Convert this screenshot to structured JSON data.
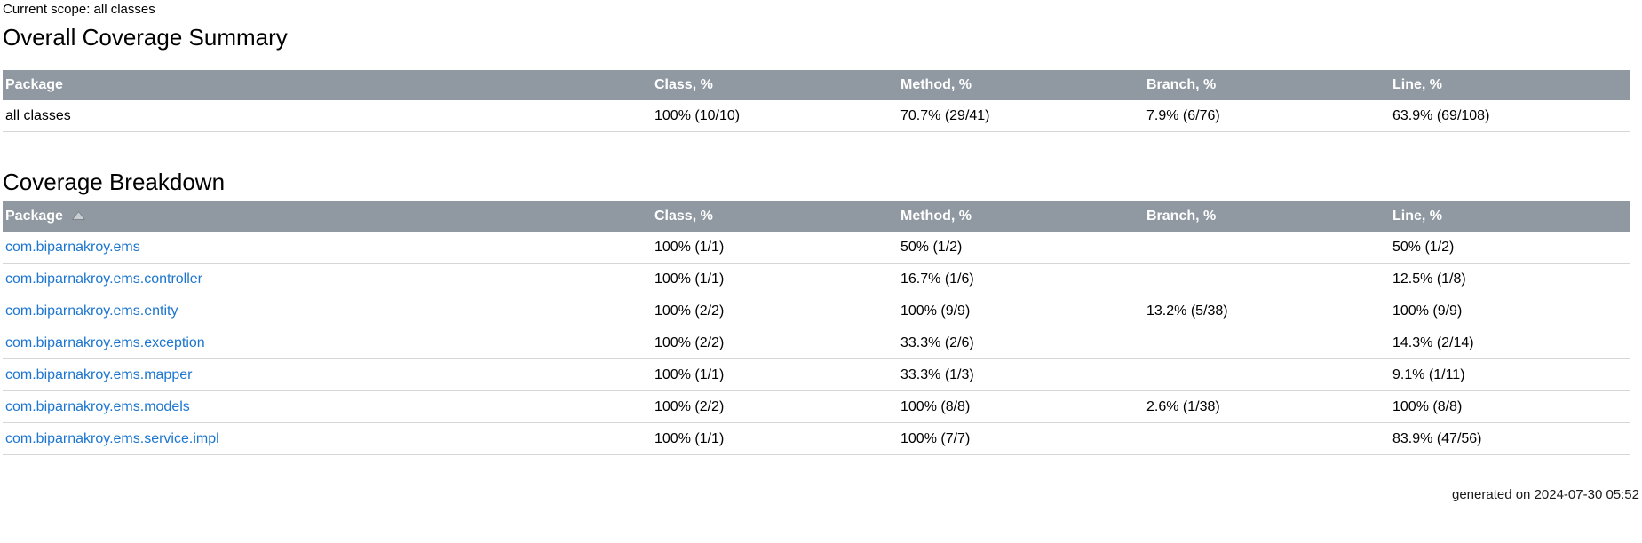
{
  "page": {
    "scope_label": "Current scope: all classes",
    "generated_label": "generated on 2024-07-30 05:52"
  },
  "colors": {
    "table_header_bg": "#9099A2",
    "table_header_text": "#FFFFFF",
    "link_blue": "#1C76CF",
    "row_border": "#D6D6D6"
  },
  "summary": {
    "title": "Overall Coverage Summary",
    "columns": [
      "Package",
      "Class, %",
      "Method, %",
      "Branch, %",
      "Line, %"
    ],
    "rows": [
      [
        "all classes",
        "100% (10/10)",
        "70.7% (29/41)",
        "7.9% (6/76)",
        "63.9% (69/108)"
      ]
    ]
  },
  "breakdown": {
    "title": "Coverage Breakdown",
    "columns": [
      "Package",
      "Class, %",
      "Method, %",
      "Branch, %",
      "Line, %"
    ],
    "sort": {
      "column": "Package",
      "direction": "ascending",
      "icon": "sort-ascending-icon"
    },
    "rows": [
      [
        "com.biparnakroy.ems",
        "100% (1/1)",
        "50% (1/2)",
        "",
        "50% (1/2)"
      ],
      [
        "com.biparnakroy.ems.controller",
        "100% (1/1)",
        "16.7% (1/6)",
        "",
        "12.5% (1/8)"
      ],
      [
        "com.biparnakroy.ems.entity",
        "100% (2/2)",
        "100% (9/9)",
        "13.2% (5/38)",
        "100% (9/9)"
      ],
      [
        "com.biparnakroy.ems.exception",
        "100% (2/2)",
        "33.3% (2/6)",
        "",
        "14.3% (2/14)"
      ],
      [
        "com.biparnakroy.ems.mapper",
        "100% (1/1)",
        "33.3% (1/3)",
        "",
        "9.1% (1/11)"
      ],
      [
        "com.biparnakroy.ems.models",
        "100% (2/2)",
        "100% (8/8)",
        "2.6% (1/38)",
        "100% (8/8)"
      ],
      [
        "com.biparnakroy.ems.service.impl",
        "100% (1/1)",
        "100% (7/7)",
        "",
        "83.9% (47/56)"
      ]
    ]
  }
}
